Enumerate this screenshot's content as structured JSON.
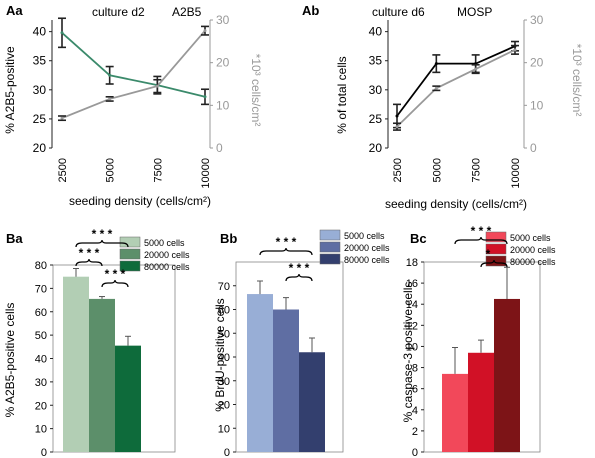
{
  "panels": {
    "Aa": "Aa",
    "Ab": "Ab",
    "Ba": "Ba",
    "Bb": "Bb",
    "Bc": "Bc"
  },
  "colors": {
    "axis_dark": "#222222",
    "axis_gray": "#999999",
    "gray_line": "#999999",
    "green_line": "#3b8a6b",
    "black_line": "#000000",
    "Ba": [
      "#b2ceb4",
      "#5c8f6a",
      "#0e6b3b"
    ],
    "Bb": [
      "#98aed6",
      "#5f6ea3",
      "#333f6e"
    ],
    "Bc": [
      "#f2485a",
      "#d11126",
      "#7d1417"
    ]
  },
  "chart_data": [
    {
      "id": "Aa",
      "type": "line",
      "title": "culture d2",
      "subtitle": "A2B5",
      "xlabel": "seeding density (cells/cm²)",
      "ylabel": "% A2B5-positive",
      "ylabel_right": "*10³ cells/cm²",
      "x": [
        2500,
        5000,
        7500,
        10000
      ],
      "xlim": [
        2500,
        10000
      ],
      "ylim": [
        20,
        42
      ],
      "yticks": [
        20,
        25,
        30,
        35,
        40
      ],
      "y2lim": [
        0,
        30
      ],
      "y2ticks": [
        0,
        10,
        20,
        30
      ],
      "grid": false,
      "series": [
        {
          "axis": "left",
          "color": "green",
          "values": [
            39.8,
            32.5,
            30.8,
            28.8
          ],
          "errors": [
            2.5,
            1.5,
            1.5,
            1.3
          ]
        },
        {
          "axis": "right",
          "color": "gray",
          "values": [
            7.0,
            11.5,
            14.5,
            27.5
          ],
          "errors": [
            0.5,
            0.5,
            1.5,
            1.0
          ]
        }
      ]
    },
    {
      "id": "Ab",
      "type": "line",
      "title": "culture d6",
      "subtitle": "MOSP",
      "xlabel": "seeding density (cells/cm²)",
      "ylabel": "% of total cells",
      "ylabel_right": "*10³ cells/cm²",
      "x": [
        2500,
        5000,
        7500,
        10000
      ],
      "xlim": [
        2500,
        10000
      ],
      "ylim": [
        20,
        42
      ],
      "yticks": [
        20,
        25,
        30,
        35,
        40
      ],
      "y2lim": [
        0,
        30
      ],
      "y2ticks": [
        0,
        10,
        20,
        30
      ],
      "grid": false,
      "series": [
        {
          "axis": "left",
          "color": "black",
          "values": [
            25.5,
            34.5,
            34.5,
            37.5
          ],
          "errors": [
            2.0,
            1.5,
            1.5,
            0.8
          ]
        },
        {
          "axis": "right",
          "color": "gray",
          "values": [
            5.0,
            14.0,
            18.5,
            23.0
          ],
          "errors": [
            0.8,
            0.5,
            1.0,
            1.0
          ]
        }
      ]
    },
    {
      "id": "Ba",
      "type": "bar",
      "ylabel": "% A2B5-positive cells",
      "ylim": [
        0,
        80
      ],
      "yticks": [
        0,
        10,
        20,
        30,
        40,
        50,
        60,
        70,
        80
      ],
      "legend": [
        "5000  cells",
        "20000 cells",
        "80000 cells"
      ],
      "legend_position": "top-right",
      "values": [
        75,
        65.5,
        45.5
      ],
      "errors": [
        3.5,
        1.0,
        4.0
      ],
      "significance": [
        "* * *",
        "* * *",
        "* * *"
      ]
    },
    {
      "id": "Bb",
      "type": "bar",
      "ylabel": "% BrdU-positive cells",
      "ylim": [
        0,
        80
      ],
      "yticks": [
        0,
        10,
        20,
        30,
        40,
        50,
        60,
        70
      ],
      "legend": [
        "5000   cells",
        "20000 cells",
        "80000 cells"
      ],
      "legend_position": "top-right",
      "values": [
        66.5,
        60,
        42
      ],
      "errors": [
        5.5,
        5.0,
        6.0
      ],
      "significance": [
        "* * *",
        "* * *"
      ]
    },
    {
      "id": "Bc",
      "type": "bar",
      "ylabel": "% caspase-3 positive cells",
      "ylim": [
        0,
        18
      ],
      "yticks": [
        0,
        2,
        4,
        6,
        8,
        10,
        12,
        14,
        16,
        18
      ],
      "legend": [
        "5000  cells",
        "20000 cells",
        "80000 cells"
      ],
      "legend_position": "top-right",
      "values": [
        7.4,
        9.4,
        14.5
      ],
      "errors": [
        2.5,
        1.2,
        3.0
      ],
      "significance": [
        "* * *",
        "*"
      ]
    }
  ]
}
